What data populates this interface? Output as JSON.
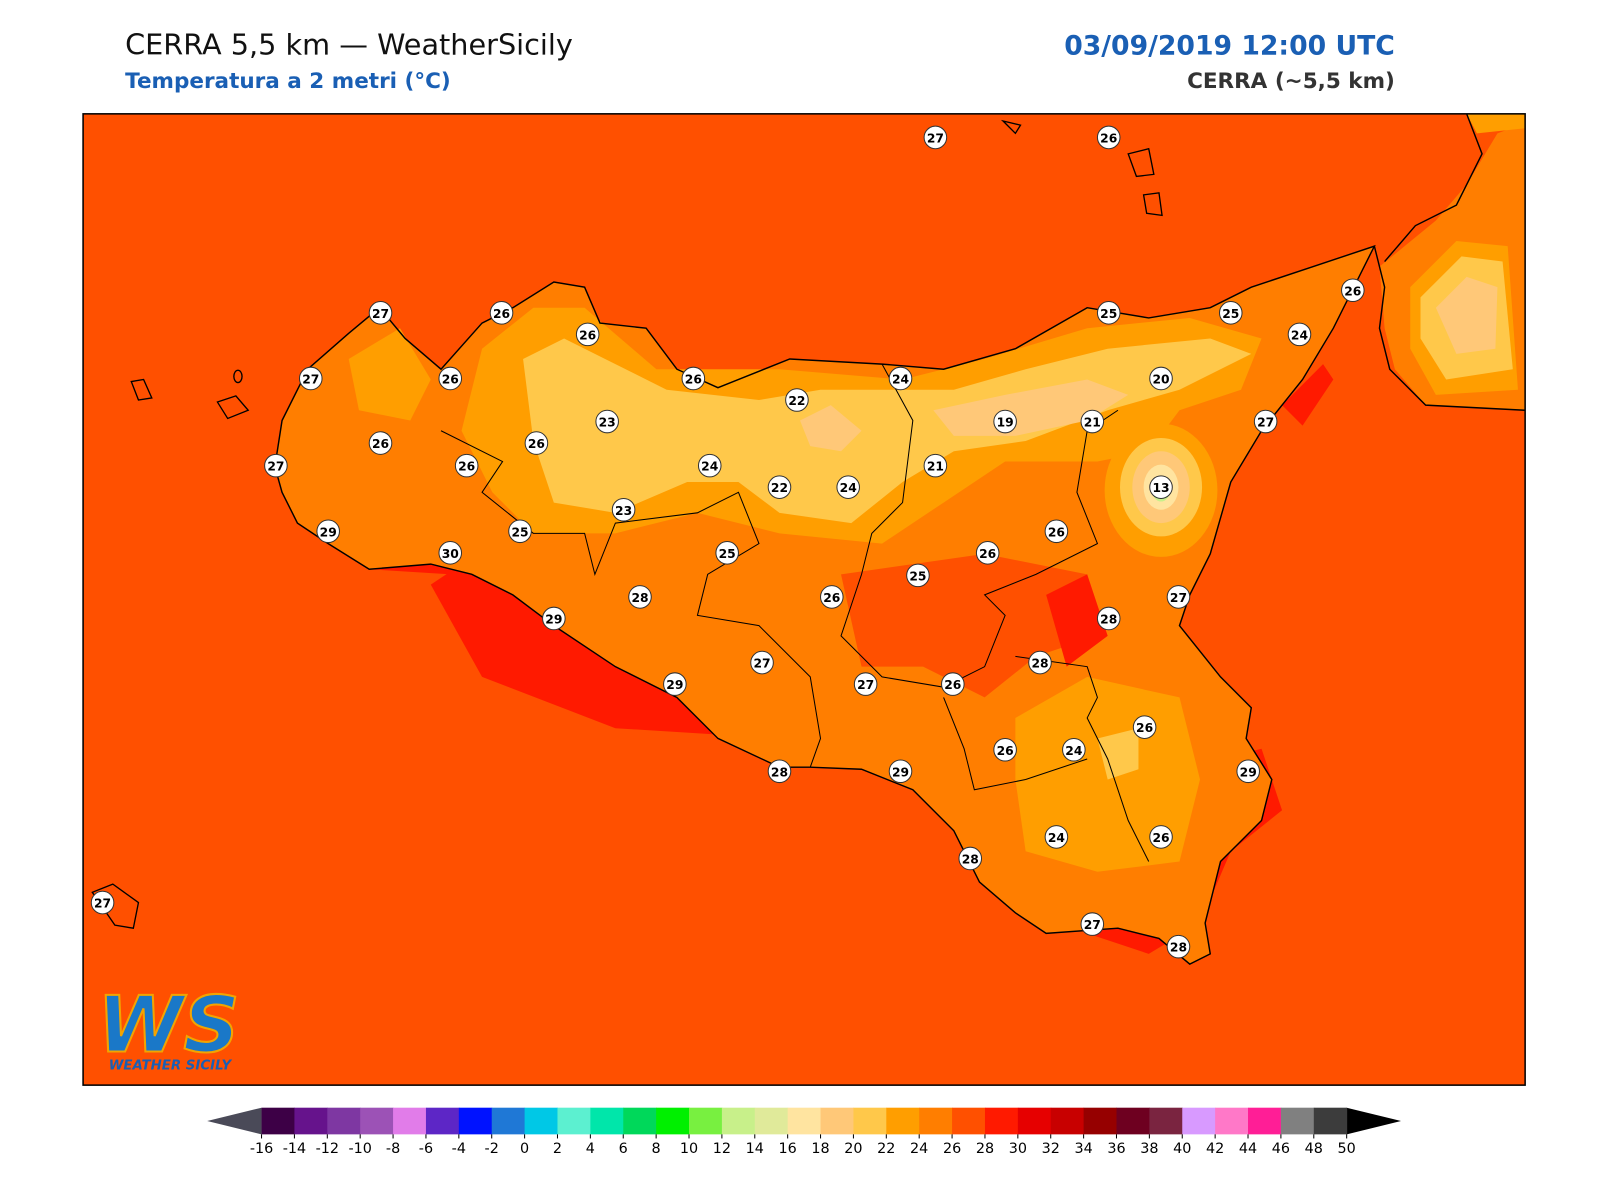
{
  "header": {
    "title": "CERRA 5,5 km — WeatherSicily",
    "subtitle": "Temperatura a 2 metri (°C)",
    "datetime": "03/09/2019 12:00 UTC",
    "model": "CERRA (~5,5 km)"
  },
  "logo": {
    "mark": "WS",
    "name": "WEATHER SICILY"
  },
  "stations": [
    27,
    26,
    27,
    26,
    26,
    25,
    25,
    26,
    24,
    27,
    26,
    26,
    24,
    20,
    22,
    23,
    19,
    21,
    27,
    26,
    26,
    27,
    26,
    24,
    21,
    22,
    24,
    13,
    23,
    29,
    25,
    26,
    30,
    25,
    26,
    25,
    26,
    28,
    27,
    29,
    28,
    28,
    27,
    29,
    27,
    26,
    26,
    26,
    24,
    28,
    29,
    29,
    24,
    26,
    28,
    27,
    28,
    27
  ],
  "colorbar": {
    "ticks": [
      -16,
      -14,
      -12,
      -10,
      -8,
      -6,
      -4,
      -2,
      0,
      2,
      4,
      6,
      8,
      10,
      12,
      14,
      16,
      18,
      20,
      22,
      24,
      26,
      28,
      30,
      32,
      34,
      36,
      38,
      40,
      42,
      44,
      46,
      48,
      50
    ],
    "colors": [
      "#3d0046",
      "#66138c",
      "#7e37a2",
      "#9c52b6",
      "#e17ce9",
      "#5d26c6",
      "#0012ff",
      "#1f78d6",
      "#00c8e6",
      "#5cf0d0",
      "#00e6aa",
      "#00d85a",
      "#00f000",
      "#78f040",
      "#c8f08a",
      "#e0ea9a",
      "#ffe4a0",
      "#ffc878",
      "#ffc84a",
      "#ff9e00",
      "#ff7e00",
      "#ff5000",
      "#ff1a00",
      "#e60000",
      "#c80000",
      "#960000",
      "#6e0020",
      "#7a2440",
      "#d89aff",
      "#ff78c8",
      "#ff1e96",
      "#808080",
      "#3c3c3c"
    ]
  }
}
